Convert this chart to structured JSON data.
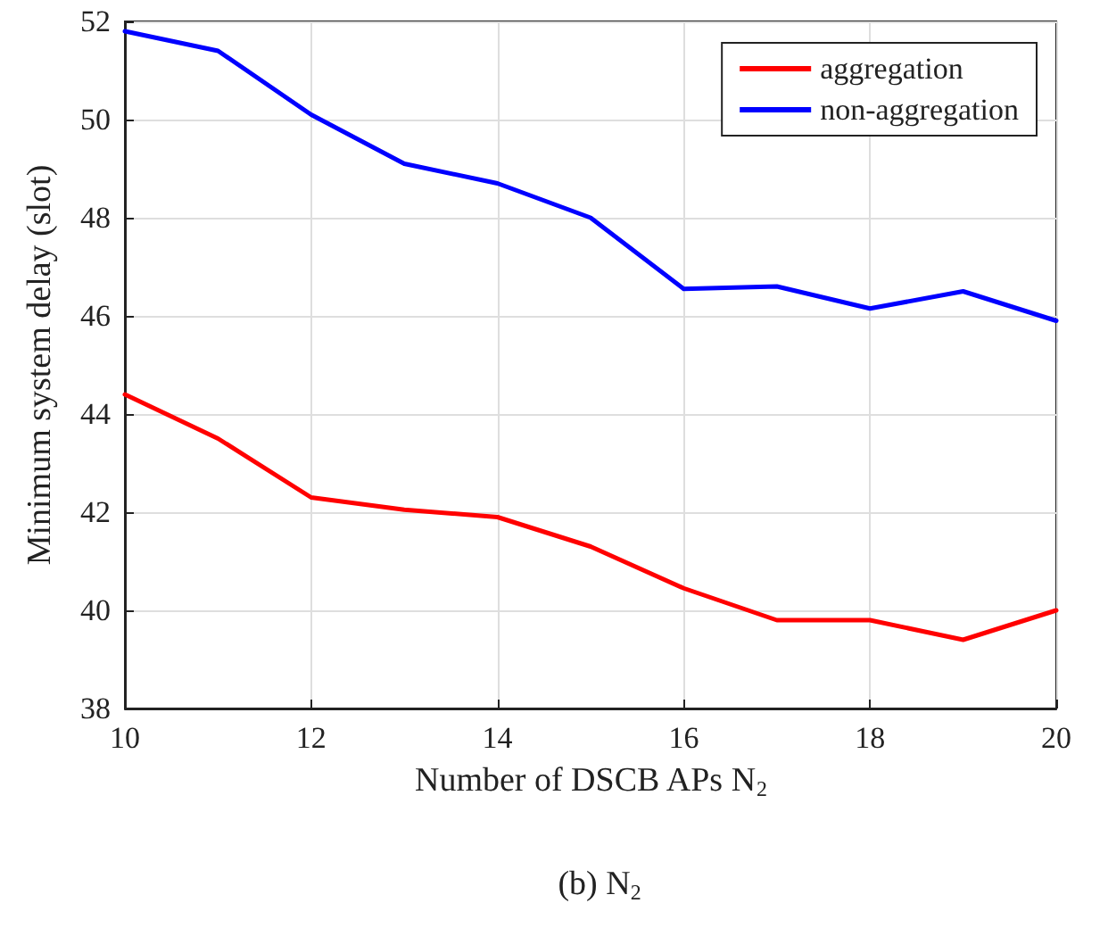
{
  "chart_data": {
    "type": "line",
    "xlabel": "Number of DSCB APs N$_{2}$",
    "ylabel": "Minimum system delay (slot)",
    "annotations": [
      "(b) N$_{2}$"
    ],
    "x": [
      10,
      11,
      12,
      13,
      14,
      15,
      16,
      17,
      18,
      19,
      20
    ],
    "series": [
      {
        "name": "aggregation",
        "color": "#ff0000",
        "values": [
          44.4,
          43.5,
          42.3,
          42.05,
          41.9,
          41.3,
          40.45,
          39.8,
          39.8,
          39.4,
          40.0
        ]
      },
      {
        "name": "non-aggregation",
        "color": "#0000ff",
        "values": [
          51.8,
          51.4,
          50.1,
          49.1,
          48.7,
          48.0,
          46.55,
          46.6,
          46.15,
          46.5,
          45.9
        ]
      }
    ],
    "xlim": [
      10,
      20
    ],
    "xticks": [
      10,
      12,
      14,
      16,
      18,
      20
    ],
    "ylim": [
      38,
      52
    ],
    "yticks": [
      38,
      40,
      42,
      44,
      46,
      48,
      50,
      52
    ],
    "grid": true,
    "legend": "top right",
    "marker": "none",
    "line_style": "solid"
  }
}
